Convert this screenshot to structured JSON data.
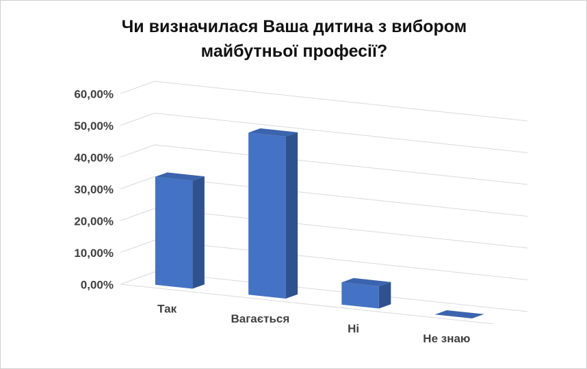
{
  "chart_data": {
    "type": "bar3d",
    "title": "Чи визначилася  Ваша дитина з вибором майбутньої професії?",
    "categories": [
      "Так",
      "Вагається",
      "Ні",
      "Не знаю"
    ],
    "values": [
      34,
      51,
      7,
      0
    ],
    "color": "#4472c4",
    "ylim": [
      0,
      60
    ],
    "yticks": [
      {
        "value": 0,
        "label": "0,00%"
      },
      {
        "value": 10,
        "label": "10,00%"
      },
      {
        "value": 20,
        "label": "20,00%"
      },
      {
        "value": 30,
        "label": "30,00%"
      },
      {
        "value": 40,
        "label": "40,00%"
      },
      {
        "value": 50,
        "label": "50,00%"
      },
      {
        "value": 60,
        "label": "60,00%"
      }
    ],
    "grid": true
  }
}
